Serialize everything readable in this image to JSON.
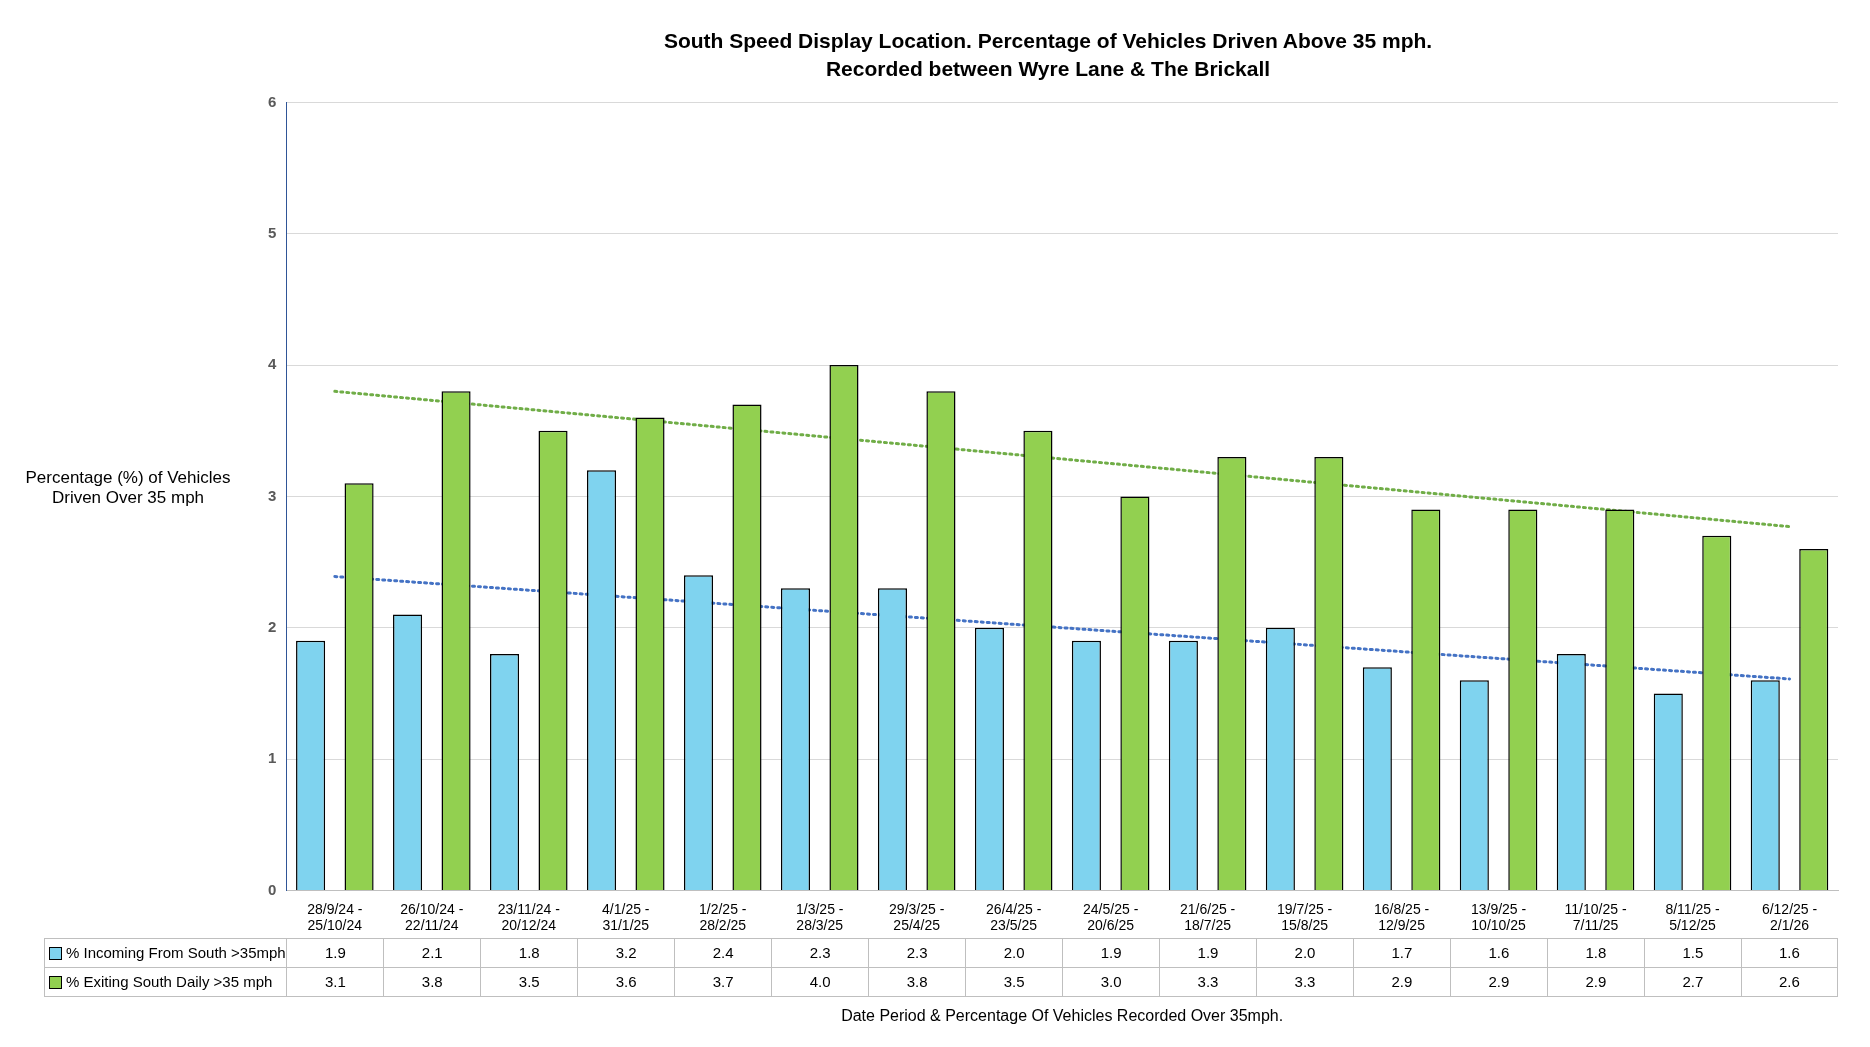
{
  "chart_data": {
    "type": "bar",
    "title": "South Speed Display Location. Percentage of Vehicles Driven Above 35 mph.",
    "subtitle": "Recorded between Wyre Lane & The Brickall",
    "xlabel": "Date Period & Percentage Of Vehicles Recorded Over 35mph.",
    "ylabel": "Percentage (%) of Vehicles Driven Over 35 mph",
    "categories": [
      "28/9/24 - 25/10/24",
      "26/10/24 - 22/11/24",
      "23/11/24 - 20/12/24",
      "4/1/25 - 31/1/25",
      "1/2/25 - 28/2/25",
      "1/3/25 - 28/3/25",
      "29/3/25 - 25/4/25",
      "26/4/25 - 23/5/25",
      "24/5/25 - 20/6/25",
      "21/6/25 - 18/7/25",
      "19/7/25 - 15/8/25",
      "16/8/25 - 12/9/25",
      "13/9/25 - 10/10/25",
      "11/10/25 - 7/11/25",
      "8/11/25 - 5/12/25",
      "6/12/25 - 2/1/26"
    ],
    "series": [
      {
        "name": "% Incoming From South >35mph",
        "color": "#7fd3ef",
        "values": [
          1.9,
          2.1,
          1.8,
          3.2,
          2.4,
          2.3,
          2.3,
          2.0,
          1.9,
          1.9,
          2.0,
          1.7,
          1.6,
          1.8,
          1.5,
          1.6
        ],
        "value_labels": [
          "1.9",
          "2.1",
          "1.8",
          "3.2",
          "2.4",
          "2.3",
          "2.3",
          "2.0",
          "1.9",
          "1.9",
          "2.0",
          "1.7",
          "1.6",
          "1.8",
          "1.5",
          "1.6"
        ]
      },
      {
        "name": "% Exiting South Daily >35 mph",
        "color": "#92d050",
        "values": [
          3.1,
          3.8,
          3.5,
          3.6,
          3.7,
          4.0,
          3.8,
          3.5,
          3.0,
          3.3,
          3.3,
          2.9,
          2.9,
          2.9,
          2.7,
          2.6
        ],
        "value_labels": [
          "3.1",
          "3.8",
          "3.5",
          "3.6",
          "3.7",
          "4.0",
          "3.8",
          "3.5",
          "3.0",
          "3.3",
          "3.3",
          "2.9",
          "2.9",
          "2.9",
          "2.7",
          "2.6"
        ]
      },
      {
        "type": "line",
        "x": [
          "28/9/24 - 25/10/24",
          "6/12/25 - 2/1/26"
        ],
        "values": [
          2.39,
          1.61
        ],
        "color": "#4472c4",
        "line_style": "dotted"
      },
      {
        "type": "line",
        "x": [
          "28/9/24 - 25/10/24",
          "6/12/25 - 2/1/26"
        ],
        "values": [
          3.8,
          2.77
        ],
        "color": "#70ad47",
        "line_style": "dotted"
      }
    ],
    "ylim": [
      0,
      6
    ],
    "yticks": [
      0,
      1,
      2,
      3,
      4,
      5,
      6
    ],
    "grid": "y",
    "legend": "bottom"
  }
}
